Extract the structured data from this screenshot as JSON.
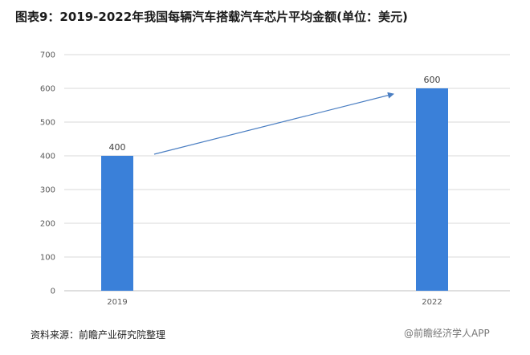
{
  "title": "图表9：2019-2022年我国每辆汽车搭载汽车芯片平均金额(单位：美元)",
  "source": "资料来源：前瞻产业研究院整理",
  "watermark": "前瞻产业研究院",
  "footer_badge": "@前瞻经济学人APP",
  "colors": {
    "bar": "#3a80d9",
    "arrow": "#4a7ec2",
    "grid": "#d9d9d9",
    "axis": "#bfbfbf"
  },
  "chart_data": {
    "type": "bar",
    "categories": [
      "2019",
      "2022"
    ],
    "values": [
      400,
      600
    ],
    "data_labels": [
      "400",
      "600"
    ],
    "yticks": [
      "0",
      "100",
      "200",
      "300",
      "400",
      "500",
      "600",
      "700"
    ],
    "ylim": [
      0,
      700
    ],
    "grid": true,
    "legend": "none",
    "annotation": "arrow-from-2019-to-2022"
  }
}
